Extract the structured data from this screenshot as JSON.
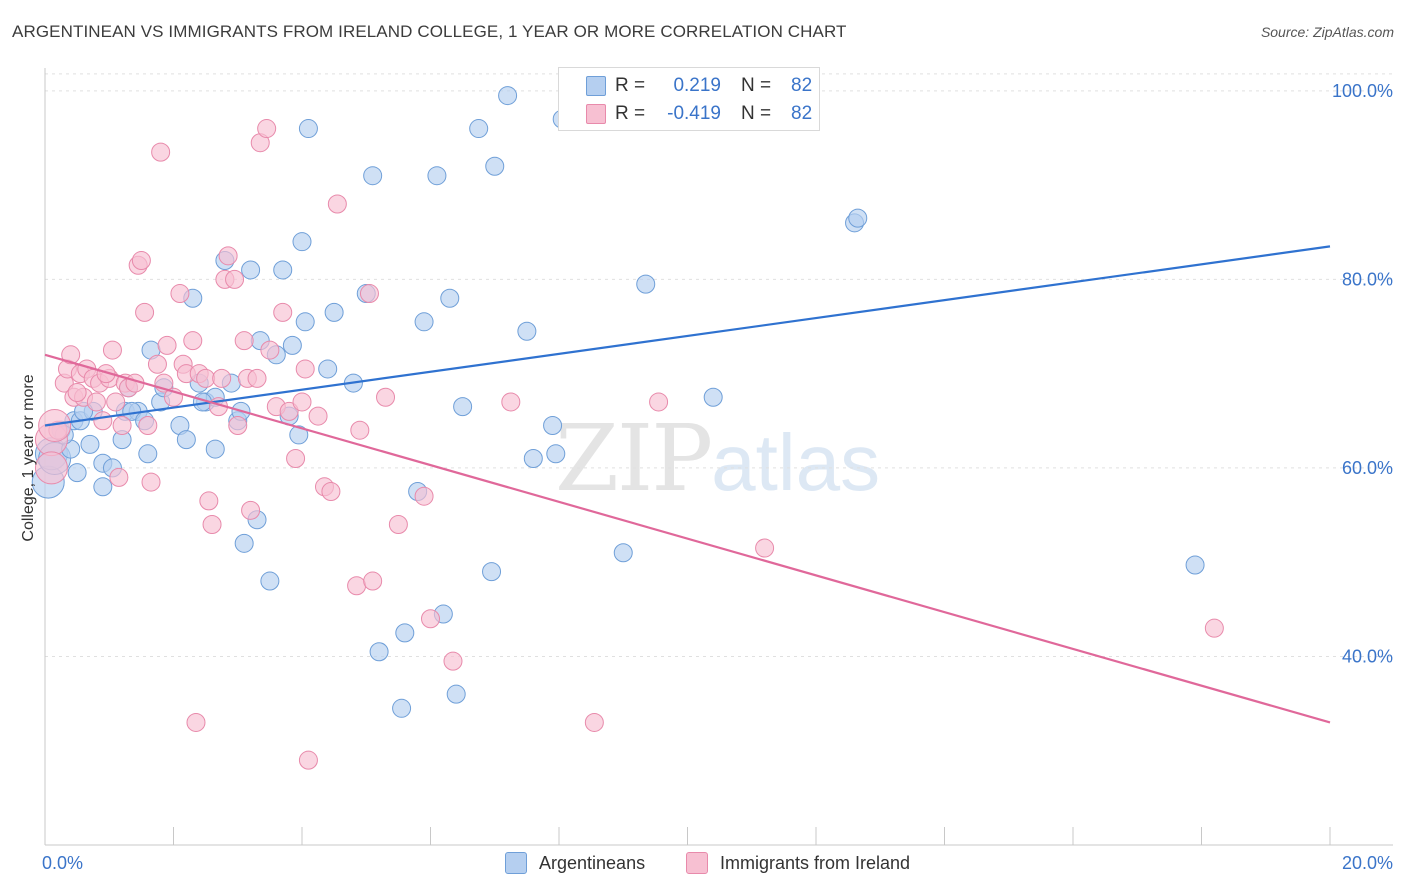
{
  "title": "ARGENTINEAN VS IMMIGRANTS FROM IRELAND COLLEGE, 1 YEAR OR MORE CORRELATION CHART",
  "source": "Source: ZipAtlas.com",
  "watermark": {
    "part1": "ZIP",
    "part2": "atlas"
  },
  "colors": {
    "blue_fill": "#b5cff0",
    "blue_stroke": "#6f9fd8",
    "blue_line": "#2f72d0",
    "pink_fill": "#f7c0d2",
    "pink_stroke": "#e88aab",
    "pink_line": "#e0689a",
    "axis_text": "#3a74c9",
    "grid": "#e0e0e0"
  },
  "correlation_box": [
    {
      "r_label": "R =",
      "r_value": "0.219",
      "n_label": "N =",
      "n_value": "82",
      "color": "#b5cff0"
    },
    {
      "r_label": "R =",
      "r_value": "-0.419",
      "n_label": "N =",
      "n_value": "82",
      "color": "#f7c0d2"
    }
  ],
  "legend": [
    {
      "label": "Argentineans",
      "color": "#b5cff0"
    },
    {
      "label": "Immigrants from Ireland",
      "color": "#f7c0d2"
    }
  ],
  "chart_data": {
    "type": "scatter",
    "title": "ARGENTINEAN VS IMMIGRANTS FROM IRELAND COLLEGE, 1 YEAR OR MORE CORRELATION CHART",
    "xlabel": "",
    "ylabel": "College, 1 year or more",
    "xlim": [
      0,
      20
    ],
    "ylim": [
      20,
      102
    ],
    "x_ticks": [
      {
        "value": 0,
        "label": "0.0%"
      },
      {
        "value": 20,
        "label": "20.0%"
      }
    ],
    "y_ticks": [
      {
        "value": 40,
        "label": "40.0%"
      },
      {
        "value": 60,
        "label": "60.0%"
      },
      {
        "value": 80,
        "label": "80.0%"
      },
      {
        "value": 100,
        "label": "100.0%"
      }
    ],
    "grid": true,
    "legend_position": "bottom-center",
    "series": [
      {
        "name": "Argentineans",
        "color": "#b5cff0",
        "trend": {
          "x": [
            0,
            20
          ],
          "y": [
            64.5,
            83.5
          ]
        },
        "points": [
          [
            0.05,
            58.5
          ],
          [
            0.1,
            61.5
          ],
          [
            0.15,
            61
          ],
          [
            0.25,
            64
          ],
          [
            0.4,
            62
          ],
          [
            0.45,
            65
          ],
          [
            0.5,
            59.5
          ],
          [
            0.55,
            65
          ],
          [
            0.7,
            62.5
          ],
          [
            0.75,
            66
          ],
          [
            0.9,
            58
          ],
          [
            1.2,
            63
          ],
          [
            1.25,
            66
          ],
          [
            1.3,
            68.5
          ],
          [
            1.45,
            66
          ],
          [
            1.6,
            61.5
          ],
          [
            1.65,
            72.5
          ],
          [
            1.8,
            67
          ],
          [
            2.1,
            64.5
          ],
          [
            2.2,
            63
          ],
          [
            2.3,
            78
          ],
          [
            2.4,
            69
          ],
          [
            2.5,
            67
          ],
          [
            2.65,
            62
          ],
          [
            2.8,
            82
          ],
          [
            2.9,
            69
          ],
          [
            3.0,
            65
          ],
          [
            3.1,
            52
          ],
          [
            3.2,
            81
          ],
          [
            3.3,
            54.5
          ],
          [
            3.35,
            73.5
          ],
          [
            3.5,
            48
          ],
          [
            3.6,
            72
          ],
          [
            3.7,
            81
          ],
          [
            3.85,
            73
          ],
          [
            3.95,
            63.5
          ],
          [
            4.0,
            84
          ],
          [
            4.05,
            75.5
          ],
          [
            4.1,
            96
          ],
          [
            4.5,
            76.5
          ],
          [
            4.8,
            69
          ],
          [
            5.0,
            78.5
          ],
          [
            5.1,
            91
          ],
          [
            5.2,
            40.5
          ],
          [
            5.55,
            34.5
          ],
          [
            5.6,
            42.5
          ],
          [
            5.8,
            57.5
          ],
          [
            5.9,
            75.5
          ],
          [
            6.1,
            91
          ],
          [
            6.2,
            44.5
          ],
          [
            6.3,
            78
          ],
          [
            6.4,
            36
          ],
          [
            6.5,
            66.5
          ],
          [
            6.75,
            96
          ],
          [
            6.95,
            49
          ],
          [
            7.0,
            92
          ],
          [
            7.2,
            99.5
          ],
          [
            7.5,
            74.5
          ],
          [
            7.6,
            61
          ],
          [
            7.9,
            64.5
          ],
          [
            7.95,
            61.5
          ],
          [
            8.05,
            97
          ],
          [
            8.25,
            97
          ],
          [
            9.0,
            51
          ],
          [
            9.35,
            79.5
          ],
          [
            9.4,
            99.5
          ],
          [
            10.4,
            67.5
          ],
          [
            12.6,
            86
          ],
          [
            12.65,
            86.5
          ],
          [
            17.9,
            49.7
          ],
          [
            1.35,
            66
          ],
          [
            0.3,
            63.5
          ],
          [
            0.9,
            60.5
          ],
          [
            1.85,
            68.5
          ],
          [
            2.65,
            67.5
          ],
          [
            3.8,
            65.5
          ],
          [
            0.6,
            66
          ],
          [
            2.45,
            67
          ],
          [
            1.05,
            60
          ],
          [
            4.4,
            70.5
          ],
          [
            1.55,
            65
          ],
          [
            3.05,
            66
          ]
        ]
      },
      {
        "name": "Immigrants from Ireland",
        "color": "#f7c0d2",
        "trend": {
          "x": [
            0,
            20
          ],
          "y": [
            72,
            33
          ]
        },
        "points": [
          [
            0.1,
            63
          ],
          [
            0.1,
            60
          ],
          [
            0.2,
            64
          ],
          [
            0.3,
            69
          ],
          [
            0.35,
            70.5
          ],
          [
            0.4,
            72
          ],
          [
            0.45,
            67.5
          ],
          [
            0.55,
            70
          ],
          [
            0.6,
            67.5
          ],
          [
            0.65,
            70.5
          ],
          [
            0.75,
            69.5
          ],
          [
            0.8,
            67
          ],
          [
            0.85,
            69
          ],
          [
            0.9,
            65
          ],
          [
            1.0,
            69.5
          ],
          [
            1.05,
            72.5
          ],
          [
            1.1,
            67
          ],
          [
            1.15,
            59
          ],
          [
            1.2,
            64.5
          ],
          [
            1.25,
            69
          ],
          [
            1.3,
            68.5
          ],
          [
            1.45,
            81.5
          ],
          [
            1.5,
            82
          ],
          [
            1.55,
            76.5
          ],
          [
            1.6,
            64.5
          ],
          [
            1.65,
            58.5
          ],
          [
            1.75,
            71
          ],
          [
            1.8,
            93.5
          ],
          [
            1.85,
            69
          ],
          [
            1.9,
            73
          ],
          [
            2.1,
            78.5
          ],
          [
            2.15,
            71
          ],
          [
            2.2,
            70
          ],
          [
            2.3,
            73.5
          ],
          [
            2.35,
            33
          ],
          [
            2.4,
            70
          ],
          [
            2.5,
            69.5
          ],
          [
            2.55,
            56.5
          ],
          [
            2.6,
            54
          ],
          [
            2.7,
            66.5
          ],
          [
            2.8,
            80
          ],
          [
            2.85,
            82.5
          ],
          [
            2.95,
            80
          ],
          [
            3.1,
            73.5
          ],
          [
            3.15,
            69.5
          ],
          [
            3.2,
            55.5
          ],
          [
            3.3,
            69.5
          ],
          [
            3.35,
            94.5
          ],
          [
            3.45,
            96
          ],
          [
            3.5,
            72.5
          ],
          [
            3.6,
            66.5
          ],
          [
            3.7,
            76.5
          ],
          [
            3.8,
            66
          ],
          [
            3.9,
            61
          ],
          [
            4.0,
            67
          ],
          [
            4.05,
            70.5
          ],
          [
            4.1,
            29
          ],
          [
            4.25,
            65.5
          ],
          [
            4.35,
            58
          ],
          [
            4.45,
            57.5
          ],
          [
            4.55,
            88
          ],
          [
            4.85,
            47.5
          ],
          [
            4.9,
            64
          ],
          [
            5.05,
            78.5
          ],
          [
            5.1,
            48
          ],
          [
            5.3,
            67.5
          ],
          [
            5.5,
            54
          ],
          [
            5.9,
            57
          ],
          [
            6.0,
            44
          ],
          [
            6.35,
            39.5
          ],
          [
            7.25,
            67
          ],
          [
            8.55,
            33
          ],
          [
            9.55,
            67
          ],
          [
            11.2,
            51.5
          ],
          [
            18.2,
            43
          ],
          [
            0.15,
            64.5
          ],
          [
            0.5,
            68
          ],
          [
            0.95,
            70
          ],
          [
            1.4,
            69
          ],
          [
            2.0,
            67.5
          ],
          [
            3.0,
            64.5
          ],
          [
            2.75,
            69.5
          ]
        ]
      }
    ]
  }
}
